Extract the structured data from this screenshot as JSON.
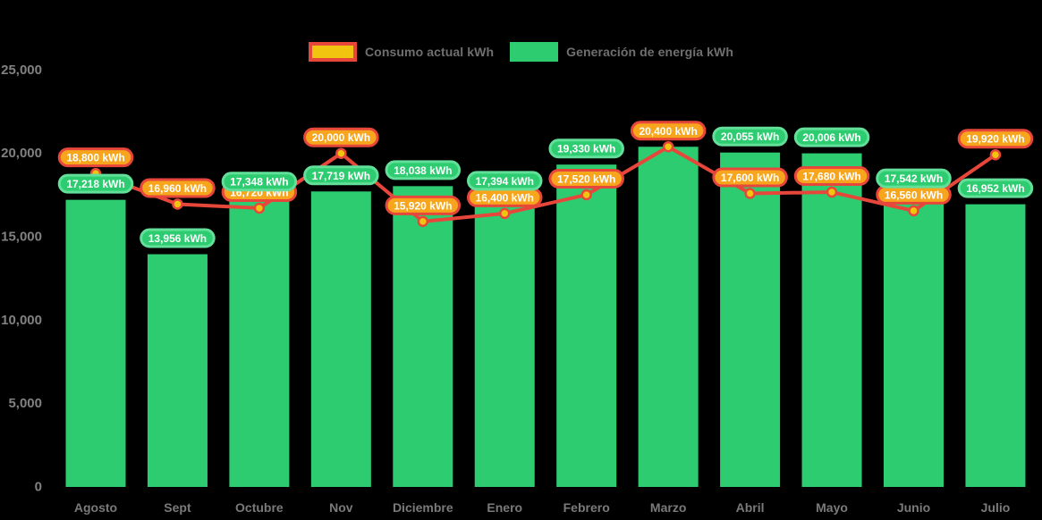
{
  "page": {
    "background_color": "#000000"
  },
  "legend": {
    "items": [
      {
        "label": "Consumo actual kWh",
        "swatch_fill": "#f1c40f",
        "swatch_border": "#e7473a"
      },
      {
        "label": "Generación de energía kWh",
        "swatch_fill": "#2ecc71",
        "swatch_border": "#2ecc71"
      }
    ]
  },
  "chart_data": {
    "type": "bar",
    "subtype": "bar-with-line-overlay",
    "categories": [
      "Agosto",
      "Sept",
      "Octubre",
      "Nov",
      "Diciembre",
      "Enero",
      "Febrero",
      "Marzo",
      "Abril",
      "Mayo",
      "Junio",
      "Julio"
    ],
    "series": [
      {
        "name": "Generación de energía kWh",
        "type": "bar",
        "color": "#2ecc71",
        "label_fill": "#2ecc71",
        "label_border": "#62df99",
        "values": [
          17218,
          13956,
          17348,
          17719,
          18038,
          17394,
          19330,
          20400,
          20055,
          20006,
          17542,
          16952
        ],
        "labels": [
          "17,218 kWh",
          "13,956 kWh",
          "17,348 kWh",
          "17,719 kWh",
          "18,038 kWh",
          "17,394 kWh",
          "19,330 kWh",
          null,
          "20,055 kWh",
          "20,006 kWh",
          "17,542 kWh",
          "16,952 kWh"
        ]
      },
      {
        "name": "Consumo actual kWh",
        "type": "line",
        "color": "#e7473a",
        "marker_fill": "#f1c40f",
        "label_fill": "#f6a51c",
        "label_border": "#e7473a",
        "values": [
          18800,
          16960,
          16720,
          20000,
          15920,
          16400,
          17520,
          20400,
          17600,
          17680,
          16560,
          19920
        ],
        "labels": [
          "18,800 kWh",
          "16,960 kWh",
          "16,720 kWh",
          "20,000 kWh",
          "15,920 kWh",
          "16,400 kWh",
          "17,520 kWh",
          "20,400 kWh",
          "17,600 kWh",
          "17,680 kWh",
          "16,560 kWh",
          "19,920 kWh"
        ]
      }
    ],
    "title": "",
    "xlabel": "",
    "ylabel": "",
    "ylim": [
      0,
      25000
    ],
    "yticks": [
      {
        "value": 25000,
        "label": "25,000"
      },
      {
        "value": 20000,
        "label": "20,000"
      },
      {
        "value": 15000,
        "label": "15,000"
      },
      {
        "value": 10000,
        "label": "10,000"
      },
      {
        "value": 5000,
        "label": "5,000"
      },
      {
        "value": 0,
        "label": "0"
      }
    ],
    "grid": false,
    "legend_position": "top-center",
    "text_color": "#7a7a7a",
    "units": "kWh"
  }
}
